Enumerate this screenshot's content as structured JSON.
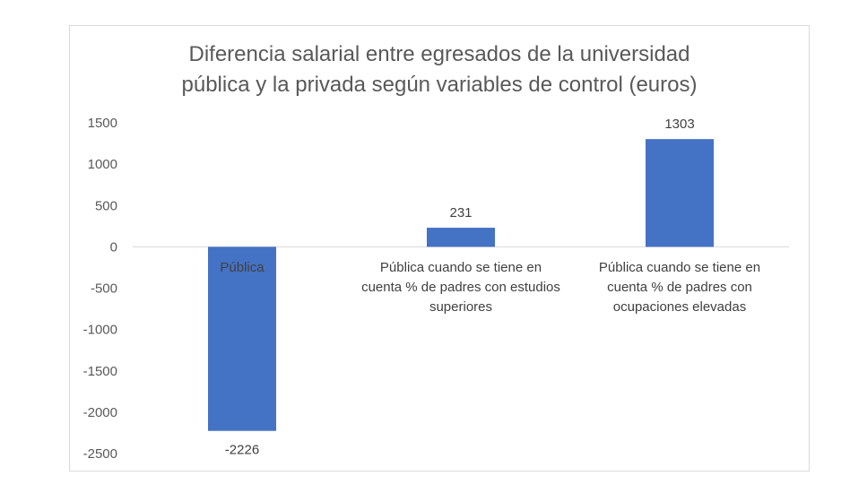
{
  "chart_data": {
    "type": "bar",
    "title_lines": [
      "Diferencia salarial entre egresados de la universidad",
      "pública y la privada según variables de control (euros)"
    ],
    "categories": [
      "Pública",
      "Pública cuando se tiene en cuenta % de padres con estudios superiores",
      "Pública cuando se tiene en cuenta % de padres con ocupaciones elevadas"
    ],
    "category_lines": [
      [
        "Pública"
      ],
      [
        "Pública cuando se tiene en",
        "cuenta % de padres con estudios",
        "superiores"
      ],
      [
        "Pública cuando se tiene en",
        "cuenta % de padres con",
        "ocupaciones elevadas"
      ]
    ],
    "values": [
      -2226,
      231,
      1303
    ],
    "data_labels": [
      "-2226",
      "231",
      "1303"
    ],
    "yticks": [
      "1500",
      "1000",
      "500",
      "0",
      "-500",
      "-1000",
      "-1500",
      "-2000",
      "-2500"
    ],
    "ylim": [
      -2500,
      1500
    ],
    "bar_color": "#4472c4",
    "grid": false,
    "legend": "none"
  }
}
